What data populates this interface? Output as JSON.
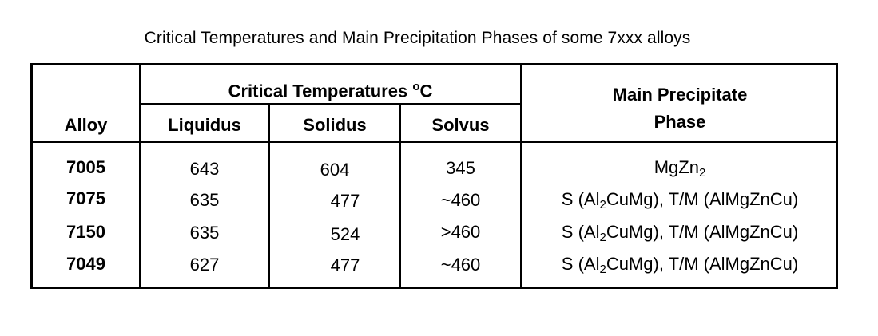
{
  "title": "Critical Temperatures and Main Precipitation Phases of some 7xxx alloys",
  "headers": {
    "alloy": "Alloy",
    "critical_temperatures": "Critical Temperatures",
    "degree_sign": "o",
    "unit": "C",
    "liquidus": "Liquidus",
    "solidus": "Solidus",
    "solvus": "Solvus",
    "main_phase_line1": "Main Precipitate",
    "main_phase_line2": "Phase"
  },
  "rows": [
    {
      "alloy": "7005",
      "liquidus": "643",
      "solidus": "604",
      "solvus": "345",
      "phase": {
        "a": "MgZn",
        "sub": "2",
        "b": ""
      }
    },
    {
      "alloy": "7075",
      "liquidus": "635",
      "solidus": "477",
      "solvus": "~460",
      "phase": {
        "a": "S (Al",
        "sub": "2",
        "b": "CuMg), T/M (AlMgZnCu)"
      }
    },
    {
      "alloy": "7150",
      "liquidus": "635",
      "solidus": "524",
      "solvus": ">460",
      "phase": {
        "a": "S (Al",
        "sub": "2",
        "b": "CuMg), T/M (AlMgZnCu)"
      }
    },
    {
      "alloy": "7049",
      "liquidus": "627",
      "solidus": "477",
      "solvus": "~460",
      "phase": {
        "a": "S (Al",
        "sub": "2",
        "b": "CuMg), T/M (AlMgZnCu)"
      }
    }
  ]
}
